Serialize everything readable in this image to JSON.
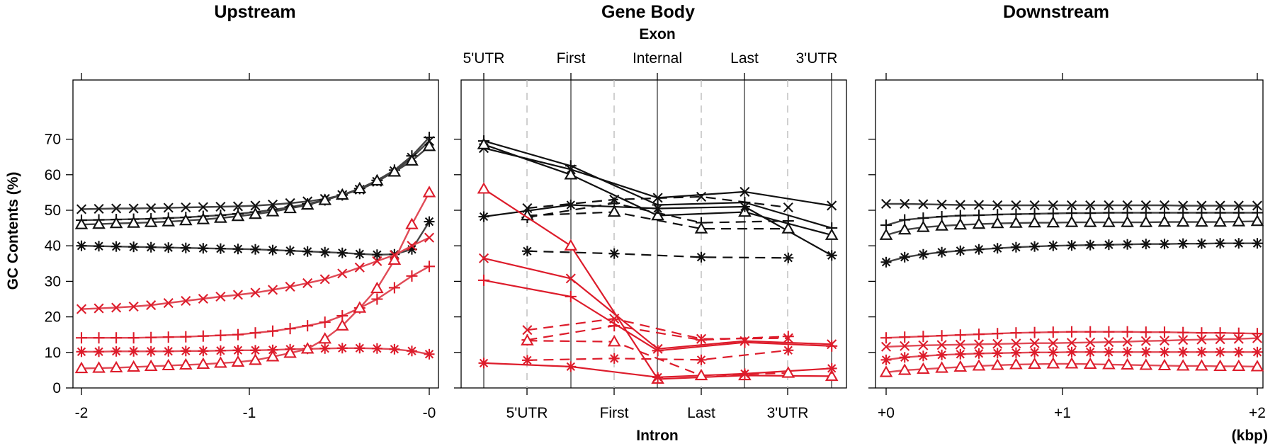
{
  "y_axis": {
    "label": "GC Contents (%)",
    "ticks": [
      0,
      10,
      20,
      30,
      40,
      50,
      60,
      70
    ],
    "ylim": [
      0,
      75
    ]
  },
  "colors": {
    "black": "#111111",
    "red": "#dd1c2b"
  },
  "marker_names": [
    "x-marker",
    "plus-marker",
    "triangle-marker",
    "asterisk-marker"
  ],
  "panels": {
    "upstream": {
      "title": "Upstream",
      "x_ticks": [
        "-2",
        "-1",
        "-0"
      ]
    },
    "genebody": {
      "title": "Gene Body",
      "top_title": "Exon",
      "top_ticks": [
        "5'UTR",
        "First",
        "Internal",
        "Last",
        "3'UTR"
      ],
      "bottom_ticks": [
        "5'UTR",
        "First",
        "Last",
        "3'UTR"
      ],
      "bottom_title": "Intron"
    },
    "downstream": {
      "title": "Downstream",
      "x_ticks": [
        "+0",
        "+1",
        "+2"
      ],
      "unit": "(kbp)"
    }
  },
  "chart_data": [
    {
      "type": "line",
      "panel": "upstream",
      "title": "Upstream",
      "ylabel": "GC Contents (%)",
      "xlim": [
        -2,
        0
      ],
      "ylim": [
        0,
        75
      ],
      "x": [
        -2.0,
        -1.9,
        -1.8,
        -1.7,
        -1.6,
        -1.5,
        -1.4,
        -1.3,
        -1.2,
        -1.1,
        -1.0,
        -0.9,
        -0.8,
        -0.7,
        -0.6,
        -0.5,
        -0.4,
        -0.3,
        -0.2,
        -0.1,
        0.0
      ],
      "series": [
        {
          "color": "black",
          "marker": "x",
          "values": [
            50.3,
            50.4,
            50.5,
            50.5,
            50.6,
            50.7,
            50.8,
            50.9,
            51.0,
            51.1,
            51.3,
            51.6,
            52.0,
            52.5,
            53.2,
            54.3,
            55.8,
            58.0,
            61.0,
            64.8,
            69.5
          ]
        },
        {
          "color": "black",
          "marker": "plus",
          "values": [
            47.2,
            47.3,
            47.4,
            47.5,
            47.6,
            47.8,
            48.0,
            48.3,
            48.6,
            49.0,
            49.5,
            50.1,
            50.9,
            51.8,
            52.9,
            54.3,
            56.1,
            58.4,
            61.3,
            65.3,
            70.5
          ]
        },
        {
          "color": "black",
          "marker": "triangle",
          "values": [
            46.0,
            46.1,
            46.3,
            46.4,
            46.6,
            46.8,
            47.1,
            47.4,
            47.8,
            48.3,
            48.9,
            49.6,
            50.5,
            51.5,
            52.8,
            54.3,
            56.1,
            58.3,
            60.8,
            63.9,
            68.0
          ]
        },
        {
          "color": "black",
          "marker": "asterisk",
          "values": [
            40.0,
            39.9,
            39.8,
            39.7,
            39.6,
            39.5,
            39.4,
            39.3,
            39.2,
            39.1,
            39.0,
            38.8,
            38.6,
            38.4,
            38.2,
            38.0,
            37.7,
            37.5,
            37.6,
            39.0,
            46.8
          ]
        },
        {
          "color": "red",
          "marker": "x",
          "values": [
            22.2,
            22.4,
            22.6,
            22.9,
            23.3,
            23.9,
            24.5,
            25.1,
            25.7,
            26.2,
            26.8,
            27.6,
            28.5,
            29.5,
            30.6,
            32.2,
            33.9,
            35.7,
            37.4,
            40.0,
            42.3
          ]
        },
        {
          "color": "red",
          "marker": "plus",
          "values": [
            14.1,
            14.1,
            14.1,
            14.1,
            14.2,
            14.3,
            14.4,
            14.6,
            14.8,
            15.0,
            15.5,
            16.0,
            16.7,
            17.5,
            18.5,
            20.3,
            22.5,
            25.0,
            28.2,
            31.5,
            34.2
          ]
        },
        {
          "color": "red",
          "marker": "asterisk",
          "values": [
            10.2,
            10.2,
            10.3,
            10.3,
            10.3,
            10.3,
            10.4,
            10.4,
            10.5,
            10.6,
            10.6,
            10.7,
            10.9,
            11.0,
            11.1,
            11.2,
            11.2,
            11.1,
            10.9,
            10.4,
            9.5
          ]
        },
        {
          "color": "red",
          "marker": "triangle",
          "values": [
            5.5,
            5.6,
            5.7,
            5.9,
            6.1,
            6.3,
            6.5,
            6.7,
            7.0,
            7.3,
            7.8,
            8.8,
            9.8,
            11.0,
            13.8,
            17.5,
            22.5,
            28.0,
            36.0,
            46.0,
            55.0
          ]
        }
      ]
    },
    {
      "type": "line",
      "panel": "genebody",
      "title": "Gene Body",
      "xlabel": "Intron",
      "x2label": "Exon",
      "ylim": [
        0,
        75
      ],
      "exon_categories": [
        "5'UTR",
        "First",
        "Internal",
        "Last",
        "3'UTR"
      ],
      "intron_categories": [
        "5'UTR",
        "First",
        "Last",
        "3'UTR"
      ],
      "exon_positions": [
        0,
        2,
        4,
        6,
        8
      ],
      "intron_positions": [
        1,
        3,
        5,
        7
      ],
      "series": [
        {
          "color": "black",
          "marker": "x",
          "style": "solid",
          "feature": "exon",
          "x": [
            0,
            2,
            4,
            6,
            8
          ],
          "values": [
            67.5,
            61.5,
            53.5,
            55.2,
            51.3
          ]
        },
        {
          "color": "black",
          "marker": "plus",
          "style": "solid",
          "feature": "exon",
          "x": [
            0,
            2,
            4,
            6,
            8
          ],
          "values": [
            69.5,
            62.5,
            51.5,
            52.2,
            45.0
          ]
        },
        {
          "color": "black",
          "marker": "triangle",
          "style": "solid",
          "feature": "exon",
          "x": [
            0,
            2,
            4,
            6,
            8
          ],
          "values": [
            68.5,
            60.0,
            48.5,
            49.5,
            43.0
          ]
        },
        {
          "color": "black",
          "marker": "asterisk",
          "style": "solid",
          "feature": "exon",
          "x": [
            0,
            2,
            4,
            6,
            8
          ],
          "values": [
            48.2,
            51.5,
            50.5,
            51.0,
            37.3
          ]
        },
        {
          "color": "black",
          "marker": "x",
          "style": "dashed",
          "feature": "intron",
          "x": [
            1,
            3,
            5,
            7
          ],
          "values": [
            50.6,
            53.0,
            53.8,
            50.8
          ]
        },
        {
          "color": "black",
          "marker": "plus",
          "style": "dashed",
          "feature": "intron",
          "x": [
            1,
            3,
            5,
            7
          ],
          "values": [
            48.0,
            52.0,
            46.5,
            47.0
          ]
        },
        {
          "color": "black",
          "marker": "triangle",
          "style": "dashed",
          "feature": "intron",
          "x": [
            1,
            3,
            5,
            7
          ],
          "values": [
            48.5,
            49.5,
            44.8,
            44.8
          ]
        },
        {
          "color": "black",
          "marker": "asterisk",
          "style": "dashed",
          "feature": "intron",
          "x": [
            1,
            3,
            5,
            7
          ],
          "values": [
            38.5,
            37.8,
            36.8,
            36.6
          ]
        },
        {
          "color": "red",
          "marker": "triangle",
          "style": "solid",
          "feature": "exon",
          "x": [
            0,
            2,
            4,
            6,
            8
          ],
          "values": [
            56.0,
            40.0,
            2.5,
            3.5,
            3.3
          ]
        },
        {
          "color": "red",
          "marker": "x",
          "style": "solid",
          "feature": "exon",
          "x": [
            0,
            2,
            4,
            6,
            8
          ],
          "values": [
            36.5,
            30.8,
            11.0,
            13.2,
            12.3
          ]
        },
        {
          "color": "red",
          "marker": "plus",
          "style": "solid",
          "feature": "exon",
          "x": [
            0,
            2,
            4,
            6,
            8
          ],
          "values": [
            30.3,
            25.7,
            10.5,
            12.8,
            11.8
          ]
        },
        {
          "color": "red",
          "marker": "asterisk",
          "style": "solid",
          "feature": "exon",
          "x": [
            0,
            2,
            4,
            6,
            8
          ],
          "values": [
            7.0,
            6.0,
            3.0,
            4.0,
            5.5
          ]
        },
        {
          "color": "red",
          "marker": "x",
          "style": "dashed",
          "feature": "intron",
          "x": [
            1,
            3,
            5,
            7
          ],
          "values": [
            16.3,
            19.5,
            13.8,
            14.0
          ]
        },
        {
          "color": "red",
          "marker": "plus",
          "style": "dashed",
          "feature": "intron",
          "x": [
            1,
            3,
            5,
            7
          ],
          "values": [
            13.5,
            17.5,
            13.5,
            14.5
          ]
        },
        {
          "color": "red",
          "marker": "triangle",
          "style": "dashed",
          "feature": "intron",
          "x": [
            1,
            3,
            5,
            7
          ],
          "values": [
            13.3,
            13.0,
            3.5,
            4.2
          ]
        },
        {
          "color": "red",
          "marker": "asterisk",
          "style": "dashed",
          "feature": "intron",
          "x": [
            1,
            3,
            5,
            7
          ],
          "values": [
            7.8,
            8.3,
            7.9,
            10.6
          ]
        }
      ]
    },
    {
      "type": "line",
      "panel": "downstream",
      "title": "Downstream",
      "xlabel": "(kbp)",
      "xlim": [
        0,
        2
      ],
      "ylim": [
        0,
        75
      ],
      "x": [
        0.0,
        0.1,
        0.2,
        0.3,
        0.4,
        0.5,
        0.6,
        0.7,
        0.8,
        0.9,
        1.0,
        1.1,
        1.2,
        1.3,
        1.4,
        1.5,
        1.6,
        1.7,
        1.8,
        1.9,
        2.0
      ],
      "series": [
        {
          "color": "black",
          "marker": "x",
          "values": [
            51.8,
            51.8,
            51.7,
            51.6,
            51.5,
            51.5,
            51.4,
            51.4,
            51.4,
            51.4,
            51.4,
            51.4,
            51.4,
            51.4,
            51.4,
            51.4,
            51.3,
            51.3,
            51.3,
            51.3,
            51.3
          ]
        },
        {
          "color": "black",
          "marker": "plus",
          "values": [
            45.8,
            47.3,
            47.8,
            48.2,
            48.5,
            48.6,
            48.8,
            48.9,
            49.0,
            49.1,
            49.2,
            49.2,
            49.3,
            49.3,
            49.3,
            49.3,
            49.3,
            49.3,
            49.3,
            49.3,
            49.3
          ]
        },
        {
          "color": "black",
          "marker": "triangle",
          "values": [
            43.0,
            44.5,
            45.2,
            45.6,
            45.9,
            46.1,
            46.3,
            46.4,
            46.5,
            46.5,
            46.6,
            46.6,
            46.6,
            46.6,
            46.6,
            46.7,
            46.7,
            46.7,
            46.7,
            46.8,
            46.9
          ]
        },
        {
          "color": "black",
          "marker": "asterisk",
          "values": [
            35.4,
            36.8,
            37.6,
            38.2,
            38.6,
            39.0,
            39.3,
            39.6,
            39.8,
            40.0,
            40.1,
            40.2,
            40.3,
            40.4,
            40.5,
            40.5,
            40.6,
            40.6,
            40.7,
            40.7,
            40.7
          ]
        },
        {
          "color": "red",
          "marker": "plus",
          "values": [
            14.1,
            14.3,
            14.5,
            14.7,
            14.9,
            15.1,
            15.3,
            15.5,
            15.6,
            15.7,
            15.8,
            15.8,
            15.8,
            15.8,
            15.7,
            15.7,
            15.6,
            15.5,
            15.5,
            15.4,
            15.3
          ]
        },
        {
          "color": "red",
          "marker": "x",
          "values": [
            11.6,
            11.8,
            12.0,
            12.1,
            12.2,
            12.3,
            12.4,
            12.5,
            12.6,
            12.6,
            12.7,
            12.8,
            12.9,
            13.0,
            13.2,
            13.3,
            13.5,
            13.6,
            13.7,
            13.8,
            14.0
          ]
        },
        {
          "color": "red",
          "marker": "asterisk",
          "values": [
            7.9,
            8.6,
            9.0,
            9.3,
            9.5,
            9.7,
            9.8,
            9.9,
            10.0,
            10.0,
            10.1,
            10.1,
            10.1,
            10.1,
            10.1,
            10.1,
            10.1,
            10.1,
            10.1,
            10.1,
            10.1
          ]
        },
        {
          "color": "red",
          "marker": "triangle",
          "values": [
            4.4,
            5.0,
            5.3,
            5.6,
            5.9,
            6.2,
            6.4,
            6.6,
            6.7,
            6.8,
            6.8,
            6.7,
            6.6,
            6.5,
            6.4,
            6.3,
            6.2,
            6.2,
            6.1,
            6.1,
            6.0
          ]
        }
      ]
    }
  ]
}
